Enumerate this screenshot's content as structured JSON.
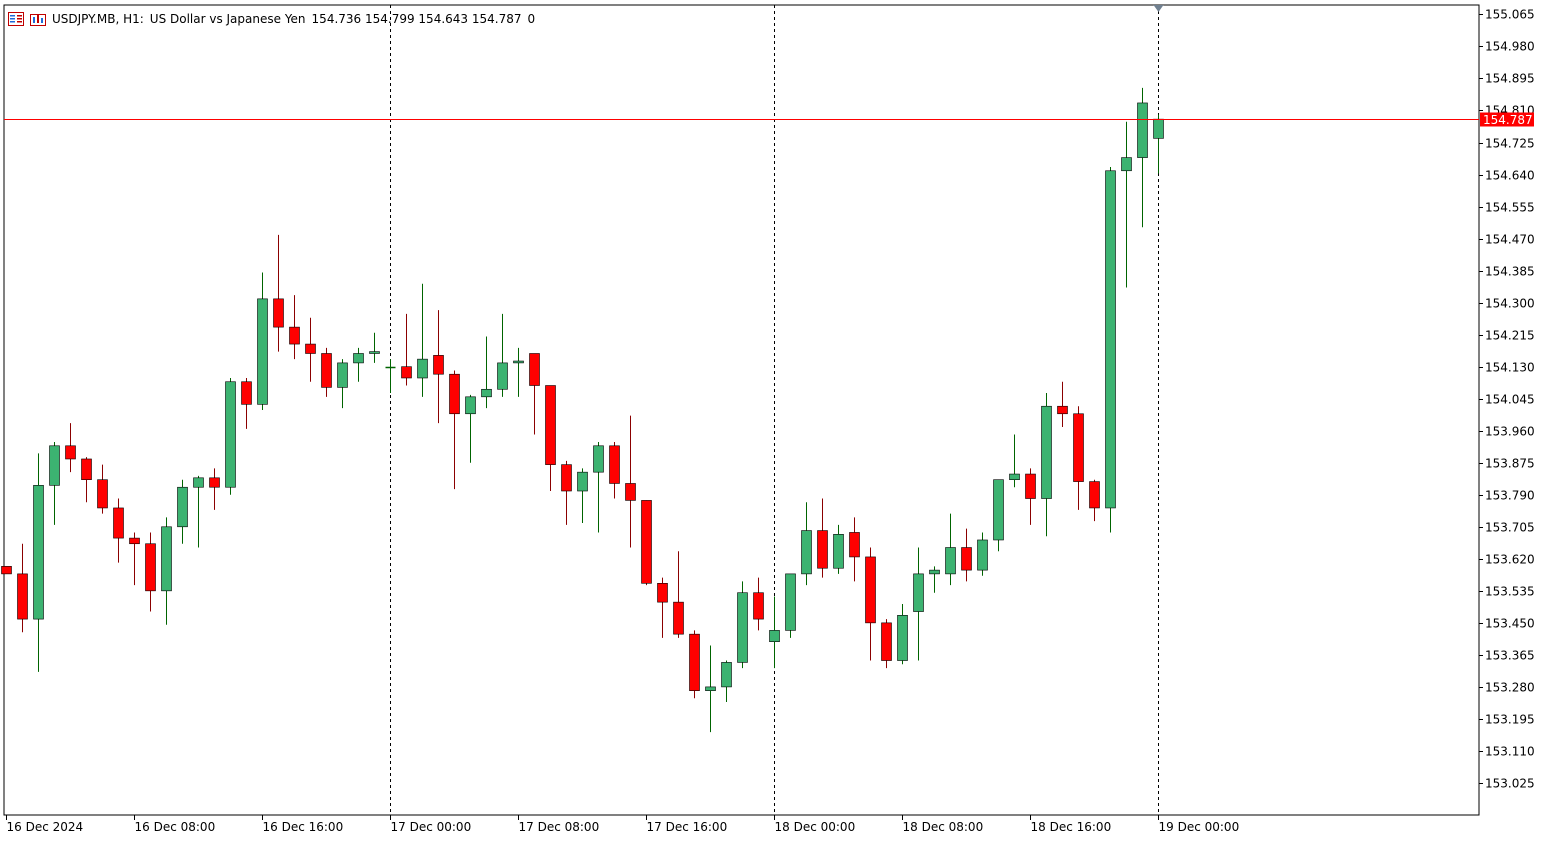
{
  "header": {
    "symbol": "USDJPY.MB, H1:",
    "description": "US Dollar vs Japanese Yen",
    "ohlc": "154.736 154.799 154.643 154.787",
    "tick_volume": "0",
    "icons": [
      "chart-list-icon",
      "chart-window-icon"
    ]
  },
  "colors": {
    "bull": "#3cb371",
    "bear": "#ff0000",
    "doji_green": "#00ff00",
    "price_line": "#ff0000",
    "price_label_bg": "#ff0000",
    "grid": "#000000",
    "background": "#ffffff"
  },
  "chart_data": {
    "type": "candlestick",
    "timeframe": "H1",
    "grid": false,
    "ylim": [
      152.94,
      155.09
    ],
    "y_ticks": [
      "155.065",
      "154.980",
      "154.895",
      "154.810",
      "154.725",
      "154.640",
      "154.555",
      "154.470",
      "154.385",
      "154.300",
      "154.215",
      "154.130",
      "154.045",
      "153.960",
      "153.875",
      "153.790",
      "153.705",
      "153.620",
      "153.535",
      "153.450",
      "153.365",
      "153.280",
      "153.195",
      "153.110",
      "153.025"
    ],
    "x_ticks": [
      {
        "index": 0,
        "label": "16 Dec 2024"
      },
      {
        "index": 8,
        "label": "16 Dec 08:00"
      },
      {
        "index": 16,
        "label": "16 Dec 16:00"
      },
      {
        "index": 24,
        "label": "17 Dec 00:00"
      },
      {
        "index": 32,
        "label": "17 Dec 08:00"
      },
      {
        "index": 40,
        "label": "17 Dec 16:00"
      },
      {
        "index": 48,
        "label": "18 Dec 00:00"
      },
      {
        "index": 56,
        "label": "18 Dec 08:00"
      },
      {
        "index": 64,
        "label": "18 Dec 16:00"
      },
      {
        "index": 72,
        "label": "19 Dec 00:00"
      }
    ],
    "separators": [
      24,
      48,
      72
    ],
    "current_price": 154.787,
    "current_price_label": "154.787",
    "candles": [
      [
        153.6,
        153.6,
        153.58,
        153.58
      ],
      [
        153.58,
        153.66,
        153.425,
        153.46
      ],
      [
        153.46,
        153.9,
        153.32,
        153.815
      ],
      [
        153.815,
        153.93,
        153.71,
        153.92
      ],
      [
        153.92,
        153.98,
        153.85,
        153.885
      ],
      [
        153.885,
        153.89,
        153.77,
        153.83
      ],
      [
        153.83,
        153.87,
        153.74,
        153.755
      ],
      [
        153.755,
        153.78,
        153.61,
        153.675
      ],
      [
        153.675,
        153.69,
        153.55,
        153.66
      ],
      [
        153.66,
        153.69,
        153.48,
        153.535
      ],
      [
        153.535,
        153.73,
        153.445,
        153.705
      ],
      [
        153.705,
        153.83,
        153.66,
        153.81
      ],
      [
        153.81,
        153.84,
        153.65,
        153.835
      ],
      [
        153.835,
        153.86,
        153.75,
        153.81
      ],
      [
        153.81,
        154.1,
        153.79,
        154.09
      ],
      [
        154.09,
        154.1,
        153.965,
        154.03
      ],
      [
        154.03,
        154.38,
        154.015,
        154.31
      ],
      [
        154.31,
        154.48,
        154.17,
        154.235
      ],
      [
        154.235,
        154.32,
        154.15,
        154.19
      ],
      [
        154.19,
        154.26,
        154.09,
        154.165
      ],
      [
        154.165,
        154.18,
        154.05,
        154.075
      ],
      [
        154.075,
        154.15,
        154.02,
        154.14
      ],
      [
        154.14,
        154.18,
        154.09,
        154.165
      ],
      [
        154.165,
        154.22,
        154.14,
        154.17
      ],
      [
        154.13,
        154.15,
        154.06,
        154.13
      ],
      [
        154.13,
        154.27,
        154.08,
        154.1
      ],
      [
        154.1,
        154.35,
        154.05,
        154.15
      ],
      [
        154.16,
        154.28,
        153.98,
        154.11
      ],
      [
        154.11,
        154.12,
        153.805,
        154.005
      ],
      [
        154.005,
        154.055,
        153.875,
        154.05
      ],
      [
        154.05,
        154.21,
        154.02,
        154.07
      ],
      [
        154.07,
        154.27,
        154.05,
        154.14
      ],
      [
        154.14,
        154.18,
        154.05,
        154.145
      ],
      [
        154.165,
        154.16,
        153.95,
        154.08
      ],
      [
        154.08,
        154.08,
        153.8,
        153.87
      ],
      [
        153.87,
        153.88,
        153.71,
        153.8
      ],
      [
        153.8,
        153.86,
        153.715,
        153.85
      ],
      [
        153.85,
        153.93,
        153.69,
        153.92
      ],
      [
        153.92,
        153.93,
        153.78,
        153.82
      ],
      [
        153.82,
        154.0,
        153.65,
        153.775
      ],
      [
        153.775,
        153.775,
        153.55,
        153.555
      ],
      [
        153.555,
        153.57,
        153.41,
        153.505
      ],
      [
        153.505,
        153.64,
        153.41,
        153.42
      ],
      [
        153.42,
        153.43,
        153.25,
        153.27
      ],
      [
        153.27,
        153.39,
        153.16,
        153.28
      ],
      [
        153.28,
        153.35,
        153.24,
        153.345
      ],
      [
        153.345,
        153.56,
        153.33,
        153.53
      ],
      [
        153.53,
        153.57,
        153.43,
        153.46
      ],
      [
        153.4,
        153.52,
        153.33,
        153.43
      ],
      [
        153.43,
        153.57,
        153.41,
        153.58
      ],
      [
        153.58,
        153.77,
        153.55,
        153.695
      ],
      [
        153.695,
        153.78,
        153.57,
        153.595
      ],
      [
        153.595,
        153.71,
        153.58,
        153.685
      ],
      [
        153.69,
        153.73,
        153.56,
        153.625
      ],
      [
        153.625,
        153.65,
        153.35,
        153.45
      ],
      [
        153.45,
        153.46,
        153.33,
        153.35
      ],
      [
        153.35,
        153.5,
        153.34,
        153.47
      ],
      [
        153.48,
        153.65,
        153.35,
        153.58
      ],
      [
        153.58,
        153.6,
        153.53,
        153.59
      ],
      [
        153.58,
        153.74,
        153.55,
        153.65
      ],
      [
        153.65,
        153.7,
        153.56,
        153.59
      ],
      [
        153.59,
        153.69,
        153.575,
        153.67
      ],
      [
        153.67,
        153.83,
        153.64,
        153.83
      ],
      [
        153.83,
        153.95,
        153.81,
        153.845
      ],
      [
        153.845,
        153.86,
        153.71,
        153.78
      ],
      [
        153.78,
        154.06,
        153.68,
        154.025
      ],
      [
        154.025,
        154.09,
        153.97,
        154.005
      ],
      [
        154.005,
        154.025,
        153.75,
        153.825
      ],
      [
        153.825,
        153.83,
        153.72,
        153.755
      ],
      [
        153.755,
        154.66,
        153.69,
        154.65
      ],
      [
        154.65,
        154.78,
        154.34,
        154.685
      ],
      [
        154.685,
        154.87,
        154.5,
        154.83
      ],
      [
        154.736,
        154.799,
        154.643,
        154.787
      ]
    ]
  }
}
